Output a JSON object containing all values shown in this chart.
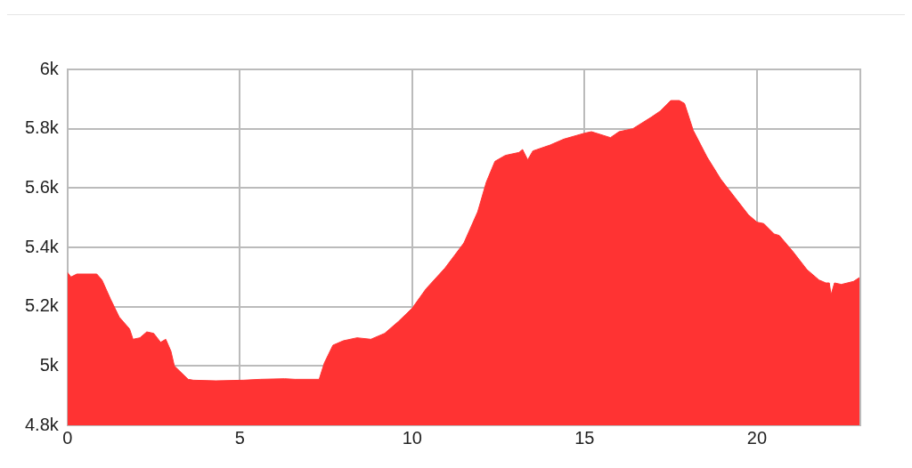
{
  "chart_data": {
    "type": "area",
    "x": [
      0,
      0.1,
      0.27,
      0.85,
      1.0,
      1.25,
      1.5,
      1.8,
      1.9,
      2.1,
      2.3,
      2.5,
      2.7,
      2.85,
      3.0,
      3.1,
      3.5,
      3.65,
      4.3,
      5.1,
      5.6,
      6.3,
      6.6,
      7.3,
      7.45,
      7.7,
      8.0,
      8.4,
      8.8,
      9.2,
      9.6,
      10.0,
      10.4,
      10.95,
      11.5,
      11.9,
      12.15,
      12.4,
      12.7,
      13.1,
      13.2,
      13.35,
      13.5,
      14.0,
      14.4,
      15.0,
      15.2,
      15.75,
      16.0,
      16.4,
      16.95,
      17.2,
      17.5,
      17.75,
      17.9,
      18.15,
      18.55,
      18.95,
      19.35,
      19.75,
      20.0,
      20.2,
      20.5,
      20.65,
      21.05,
      21.45,
      21.8,
      22.0,
      22.1,
      22.15,
      22.25,
      22.45,
      22.8,
      23.0
    ],
    "series": [
      {
        "color": "#ff3333",
        "values": [
          5315,
          5300,
          5310,
          5310,
          5290,
          5225,
          5165,
          5125,
          5090,
          5095,
          5115,
          5110,
          5080,
          5090,
          5050,
          5000,
          4955,
          4952,
          4950,
          4952,
          4955,
          4957,
          4955,
          4955,
          5010,
          5070,
          5085,
          5095,
          5090,
          5110,
          5150,
          5195,
          5260,
          5330,
          5415,
          5520,
          5620,
          5690,
          5710,
          5720,
          5730,
          5695,
          5725,
          5745,
          5765,
          5785,
          5790,
          5770,
          5790,
          5800,
          5840,
          5860,
          5895,
          5895,
          5885,
          5795,
          5705,
          5630,
          5570,
          5510,
          5485,
          5480,
          5445,
          5440,
          5385,
          5325,
          5290,
          5280,
          5280,
          5240,
          5280,
          5275,
          5285,
          5300
        ]
      }
    ],
    "xlim": [
      0,
      23
    ],
    "xticks": [
      0,
      5,
      10,
      15,
      20
    ],
    "ylim": [
      4800,
      6000
    ],
    "yticks": [
      {
        "value": 4800,
        "label": "4.8k"
      },
      {
        "value": 5000,
        "label": "5k"
      },
      {
        "value": 5200,
        "label": "5.2k"
      },
      {
        "value": 5400,
        "label": "5.4k"
      },
      {
        "value": 5600,
        "label": "5.6k"
      },
      {
        "value": 5800,
        "label": "5.8k"
      },
      {
        "value": 6000,
        "label": "6k"
      }
    ],
    "grid": true,
    "legend": false,
    "marker": "none"
  }
}
